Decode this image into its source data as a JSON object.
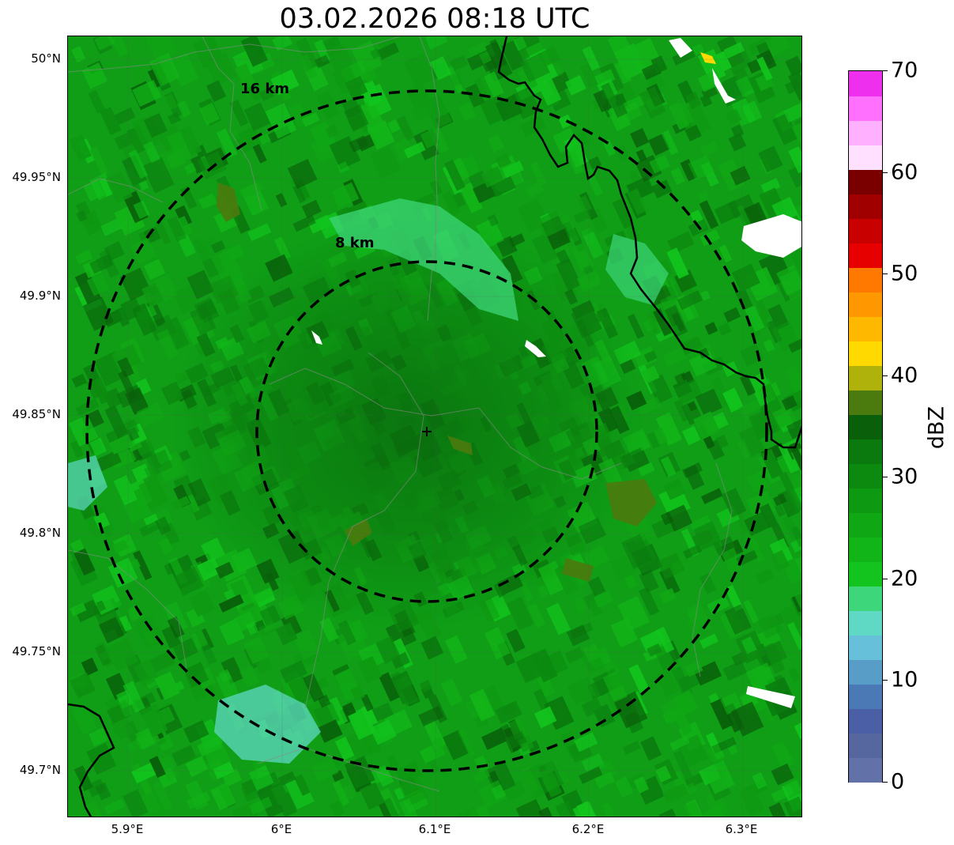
{
  "title": "03.02.2026 08:18 UTC",
  "lat_labels": [
    "50°N",
    "49.95°N",
    "49.9°N",
    "49.85°N",
    "49.8°N",
    "49.75°N",
    "49.7°N"
  ],
  "lon_labels": [
    "5.9°E",
    "6°E",
    "6.1°E",
    "6.2°E",
    "6.3°E"
  ],
  "range_rings": [
    {
      "label": "16 km",
      "radius_km": 16
    },
    {
      "label": "8 km",
      "radius_km": 8
    }
  ],
  "colorbar": {
    "unit": "dBZ",
    "range": [
      0,
      70
    ],
    "tick_labels": [
      "0",
      "10",
      "20",
      "30",
      "40",
      "50",
      "60",
      "70"
    ],
    "colors": [
      "#6272a8",
      "#5667a0",
      "#4a5fa5",
      "#4a79b5",
      "#589dc8",
      "#67c0da",
      "#5fd8c4",
      "#3dd67a",
      "#12c41d",
      "#12b518",
      "#10a715",
      "#0e9912",
      "#0c8a10",
      "#0a7a0e",
      "#095f0a",
      "#4b7a0e",
      "#aeb20a",
      "#ffd900",
      "#ffb800",
      "#ff9800",
      "#ff7800",
      "#e60000",
      "#c80000",
      "#a00000",
      "#7a0000",
      "#ffe0ff",
      "#ffb0ff",
      "#ff70ff",
      "#ee30ee"
    ]
  },
  "colors": {
    "background_green": "#0f9e16",
    "ring": "#000000",
    "border": "#000000"
  }
}
